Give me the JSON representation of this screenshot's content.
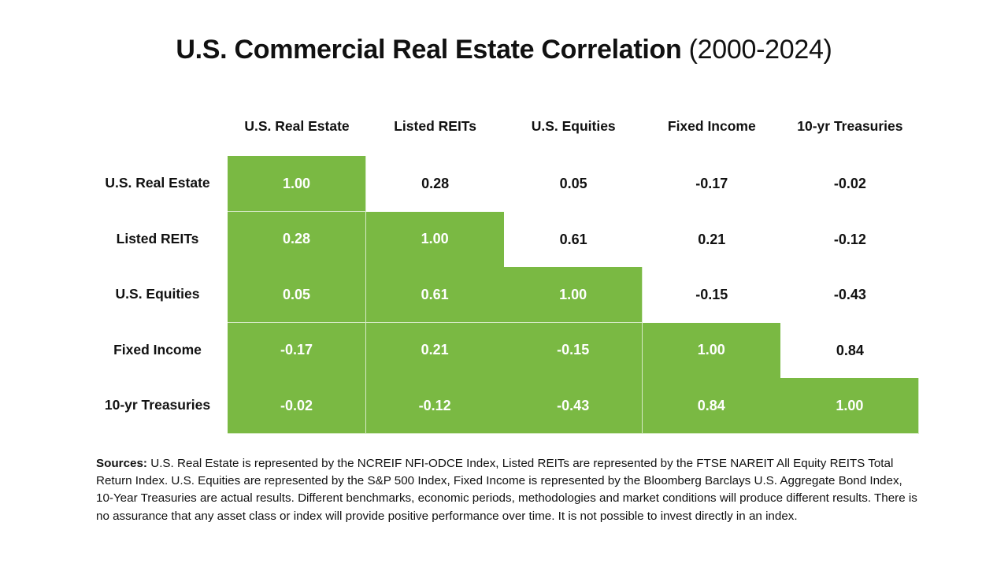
{
  "title": {
    "main": "U.S. Commercial Real Estate Correlation",
    "period": "(2000-2024)"
  },
  "chart_data": {
    "type": "heatmap",
    "title": "U.S. Commercial Real Estate Correlation (2000-2024)",
    "columns": [
      "U.S. Real Estate",
      "Listed REITs",
      "U.S. Equities",
      "Fixed Income",
      "10-yr Treasuries"
    ],
    "rows": [
      "U.S. Real Estate",
      "Listed REITs",
      "U.S. Equities",
      "Fixed Income",
      "10-yr Treasuries"
    ],
    "values": [
      [
        "1.00",
        "0.28",
        "0.05",
        "-0.17",
        "-0.02"
      ],
      [
        "0.28",
        "1.00",
        "0.61",
        "0.21",
        "-0.12"
      ],
      [
        "0.05",
        "0.61",
        "1.00",
        "-0.15",
        "-0.43"
      ],
      [
        "-0.17",
        "0.21",
        "-0.15",
        "1.00",
        "0.84"
      ],
      [
        "-0.02",
        "-0.12",
        "-0.43",
        "0.84",
        "1.00"
      ]
    ],
    "highlight": "lower-triangle-including-diagonal",
    "highlight_color": "#7ab943"
  },
  "sources": {
    "label": "Sources:",
    "text": " U.S. Real Estate is represented by the NCREIF NFI-ODCE Index, Listed REITs are represented by the FTSE NAREIT All Equity REITS Total Return Index. U.S. Equities are represented by the S&P 500 Index, Fixed Income is represented by the Bloomberg Barclays U.S. Aggregate Bond Index, 10-Year Treasuries are actual results. Different benchmarks, economic periods, methodologies and market conditions will produce different results. There is no assurance that any asset class or index will provide positive performance over time. It is not possible to invest directly in an index."
  }
}
